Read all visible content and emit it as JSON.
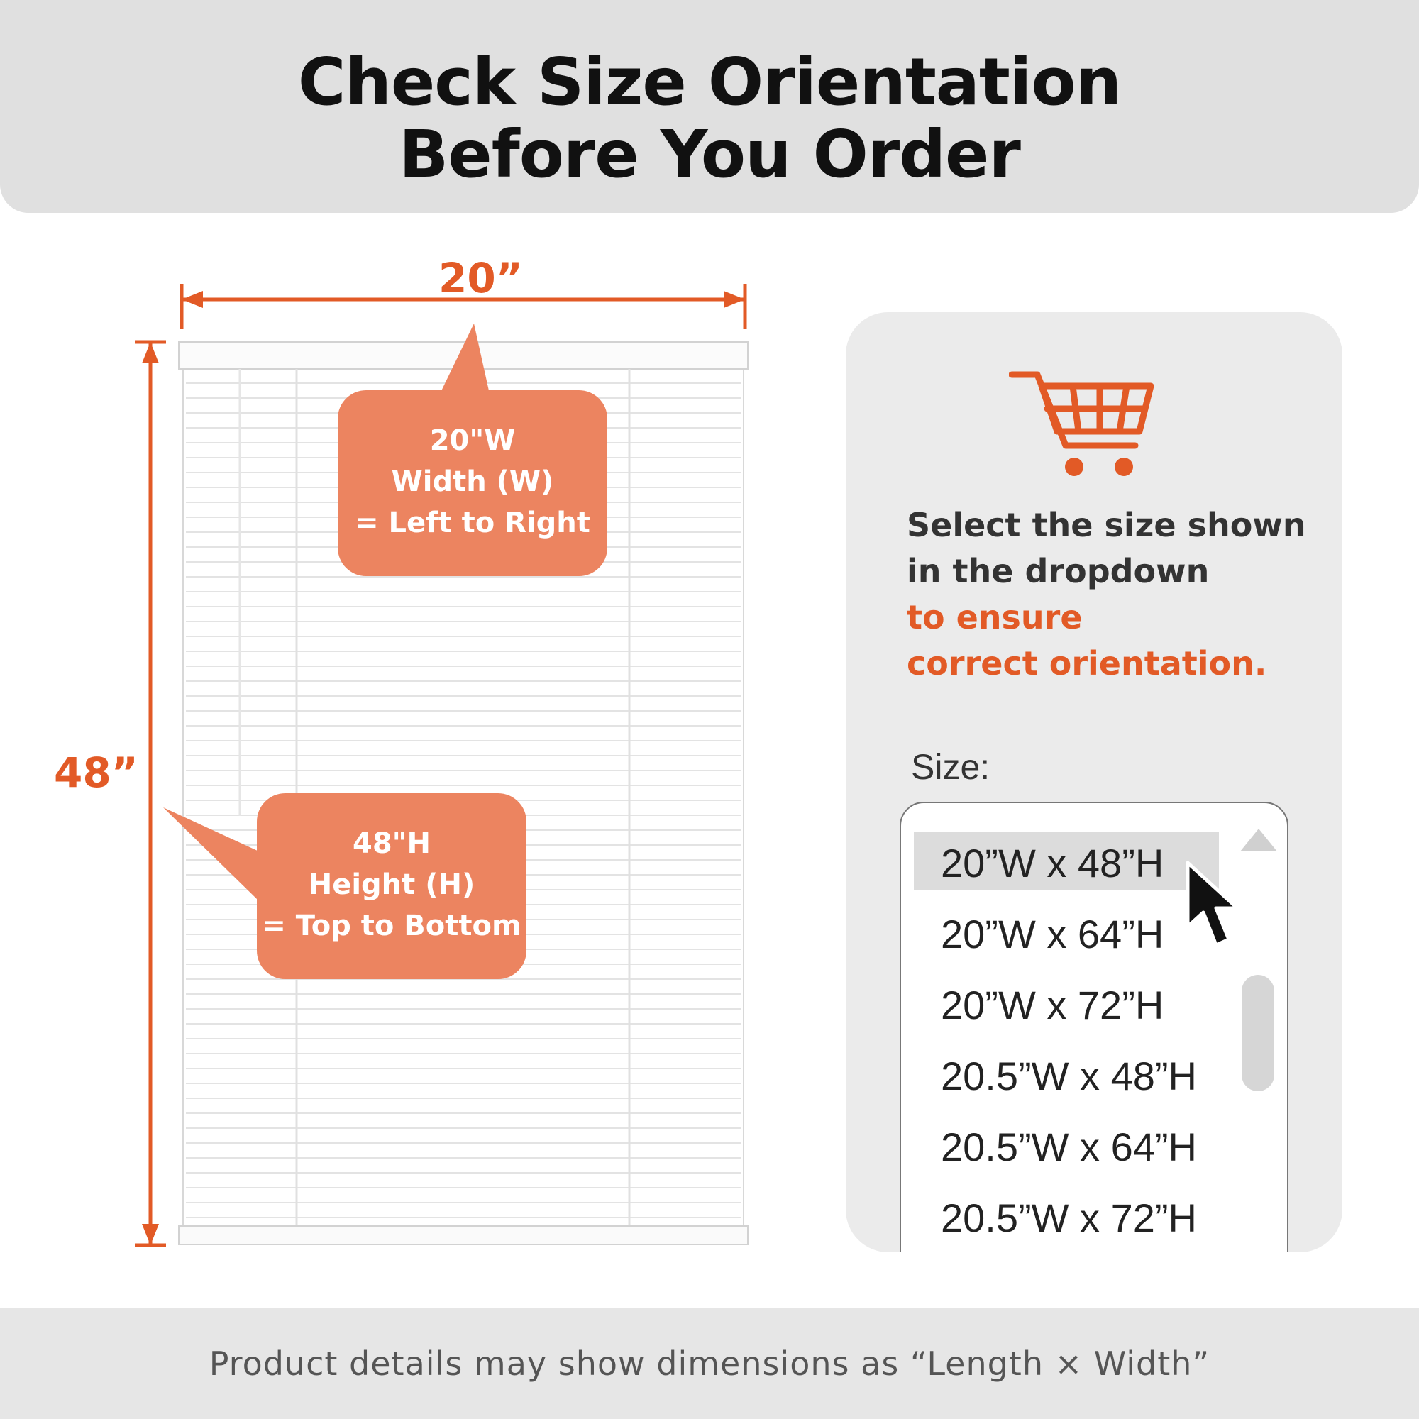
{
  "header": {
    "title_line1": "Check Size Orientation",
    "title_line2": "Before You Order"
  },
  "diagram": {
    "width_label": "20”",
    "height_label": "48”",
    "width_callout": [
      "20\"W",
      "Width (W)",
      "= Left to Right"
    ],
    "height_callout": [
      "48\"H",
      "Height (H)",
      "= Top to Bottom"
    ]
  },
  "panel": {
    "instruction_line1": "Select the size shown",
    "instruction_line2": "in the dropdown",
    "instruction_accent1": "to ensure",
    "instruction_accent2": "correct orientation.",
    "size_label": "Size:",
    "options": [
      "20”W x 48”H",
      "20”W x 64”H",
      "20”W x 72”H",
      "20.5”W x 48”H",
      "20.5”W x 64”H",
      "20.5”W x 72”H"
    ],
    "selected_option": "20”W x 48”H"
  },
  "footer": {
    "note": "Product details may show dimensions as “Length × Width”"
  },
  "colors": {
    "accent": "#e25a26",
    "callout": "#ec8460",
    "header_bg": "#e0e0e0",
    "panel_bg": "#ebebeb"
  },
  "icons": [
    "cart-icon",
    "mouse-cursor-icon",
    "scroll-up-arrow-icon"
  ]
}
